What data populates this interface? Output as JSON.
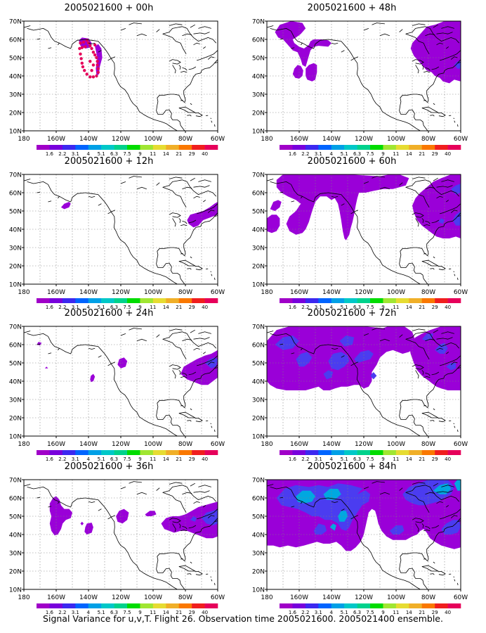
{
  "figure": {
    "caption": "Signal Variance for u,v,T. Flight 26. Observation time 2005021600. 2005021400 ensemble.",
    "y_ticks": [
      "70N",
      "60N",
      "50N",
      "40N",
      "30N",
      "20N",
      "10N"
    ],
    "x_ticks": [
      "180",
      "160W",
      "140W",
      "120W",
      "100W",
      "80W",
      "60W"
    ],
    "colorbar_levels": [
      "1.6",
      "2.2",
      "3.1",
      "4",
      "5.1",
      "6.3",
      "7.5",
      "9",
      "11",
      "14",
      "21",
      "29",
      "40"
    ],
    "colorbar_colors": [
      "#a000c8",
      "#7800dc",
      "#3c28f0",
      "#0064ff",
      "#00a0e6",
      "#00c8c8",
      "#00d28c",
      "#00dc00",
      "#a0e632",
      "#e6dc32",
      "#f0af28",
      "#fa7800",
      "#f01e1e",
      "#e6005a"
    ],
    "fill_palette": {
      "light": "#9a00d8",
      "mid": "#4b3cf0",
      "cyan": "#00a8e0",
      "dot": "#e6005a",
      "coast": "#000000",
      "grid": "#808080"
    }
  },
  "panels": [
    {
      "title": "2005021600 + 00h"
    },
    {
      "title": "2005021600 + 48h"
    },
    {
      "title": "2005021600 + 12h"
    },
    {
      "title": "2005021600 + 60h"
    },
    {
      "title": "2005021600 + 24h"
    },
    {
      "title": "2005021600 + 72h"
    },
    {
      "title": "2005021600 + 36h"
    },
    {
      "title": "2005021600 + 84h"
    }
  ]
}
